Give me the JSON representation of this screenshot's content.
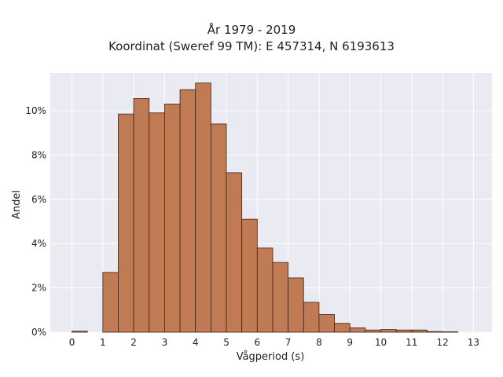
{
  "chart_data": {
    "type": "bar",
    "title": "År 1979 - 2019",
    "subtitle": "Koordinat (Sweref 99 TM): E 457314, N 6193613",
    "xlabel": "Vågperiod (s)",
    "ylabel": "Andel",
    "bin_width": 0.5,
    "bins_start": [
      0,
      0.5,
      1,
      1.5,
      2,
      2.5,
      3,
      3.5,
      4,
      4.5,
      5,
      5.5,
      6,
      6.5,
      7,
      7.5,
      8,
      8.5,
      9,
      9.5,
      10,
      10.5,
      11,
      11.5,
      12,
      12.5,
      13
    ],
    "values": [
      0.05,
      0,
      2.7,
      9.85,
      10.55,
      9.9,
      10.3,
      10.95,
      11.25,
      9.4,
      7.2,
      5.1,
      3.8,
      3.15,
      2.45,
      1.35,
      0.8,
      0.4,
      0.2,
      0.1,
      0.12,
      0.1,
      0.1,
      0.03,
      0.02,
      0,
      0
    ],
    "xlim": [
      -0.7,
      13.6
    ],
    "ylim": [
      0,
      11.7
    ],
    "xticks": [
      0,
      1,
      2,
      3,
      4,
      5,
      6,
      7,
      8,
      9,
      10,
      11,
      12,
      13
    ],
    "yticks": [
      0,
      2,
      4,
      6,
      8,
      10
    ],
    "ytick_labels": [
      "0%",
      "2%",
      "4%",
      "6%",
      "8%",
      "10%"
    ],
    "grid": true,
    "colors": {
      "bar_fill": "#c07a54",
      "bar_stroke": "#3d2418",
      "plot_bg": "#eaeaf2",
      "grid": "#ffffff"
    }
  }
}
